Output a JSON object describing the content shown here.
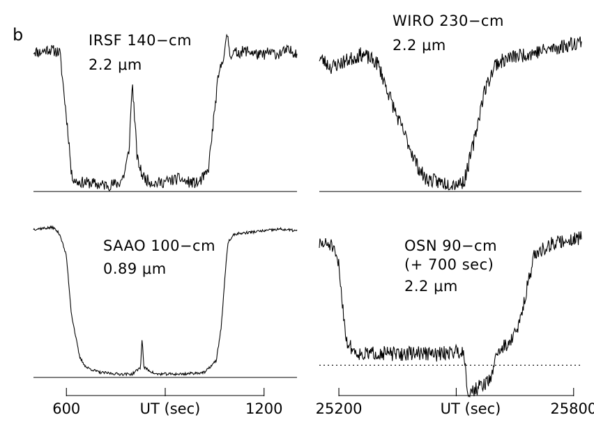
{
  "figure": {
    "panel_letter": "b"
  },
  "chart_data": [
    {
      "type": "line",
      "id": "irsf",
      "label_lines": [
        "IRSF 140−cm",
        "2.2 μm"
      ],
      "x_range": [
        500,
        1300
      ],
      "y_range": [
        0,
        1
      ],
      "series": [
        {
          "x": [
            500,
            520,
            545,
            580,
            608,
            615,
            630,
            680,
            700,
            730,
            760,
            775,
            790,
            800,
            815,
            830,
            845,
            870,
            900,
            945,
            960,
            1000,
            1030,
            1045,
            1060,
            1075,
            1080,
            1090,
            1095,
            1150,
            1190,
            1215,
            1240,
            1270,
            1300
          ],
          "y": [
            0.86,
            0.85,
            0.87,
            0.85,
            0.3,
            0.1,
            0.06,
            0.05,
            0.04,
            0.04,
            0.05,
            0.1,
            0.25,
            0.67,
            0.2,
            0.1,
            0.07,
            0.05,
            0.06,
            0.08,
            0.06,
            0.05,
            0.12,
            0.4,
            0.68,
            0.82,
            0.85,
            0.97,
            0.84,
            0.86,
            0.83,
            0.85,
            0.84,
            0.86,
            0.85
          ]
        }
      ],
      "baseline": 0
    },
    {
      "type": "line",
      "id": "wiro",
      "label_lines": [
        "WIRO 230−cm",
        "2.2 μm"
      ],
      "x_range": [
        25150,
        25820
      ],
      "y_range": [
        0,
        1
      ],
      "series": [
        {
          "x": [
            25150,
            25180,
            25220,
            25260,
            25300,
            25330,
            25350,
            25380,
            25400,
            25420,
            25450,
            25480,
            25500,
            25520,
            25545,
            25570,
            25600,
            25640,
            25700,
            25760,
            25820
          ],
          "y": [
            0.82,
            0.76,
            0.8,
            0.84,
            0.78,
            0.58,
            0.45,
            0.28,
            0.16,
            0.08,
            0.06,
            0.05,
            0.05,
            0.06,
            0.3,
            0.6,
            0.78,
            0.82,
            0.85,
            0.88,
            0.92
          ]
        }
      ],
      "baseline": 0
    },
    {
      "type": "line",
      "id": "saao",
      "label_lines": [
        "SAAO 100−cm",
        "0.89 μm"
      ],
      "x_range": [
        500,
        1300
      ],
      "y_range": [
        0,
        1
      ],
      "series": [
        {
          "x": [
            500,
            560,
            580,
            600,
            615,
            640,
            660,
            700,
            760,
            800,
            825,
            830,
            835,
            870,
            950,
            1020,
            1055,
            1070,
            1080,
            1090,
            1110,
            1150,
            1200,
            1250,
            1300
          ],
          "y": [
            0.88,
            0.89,
            0.85,
            0.72,
            0.38,
            0.12,
            0.06,
            0.03,
            0.02,
            0.02,
            0.06,
            0.24,
            0.06,
            0.02,
            0.02,
            0.03,
            0.1,
            0.3,
            0.56,
            0.8,
            0.85,
            0.86,
            0.87,
            0.88,
            0.87
          ]
        }
      ],
      "baseline": 0
    },
    {
      "type": "line",
      "id": "osn",
      "label_lines": [
        "OSN 90−cm",
        "(+ 700 sec)",
        "2.2 μm"
      ],
      "x_range": [
        25150,
        25820
      ],
      "y_range": [
        0,
        1
      ],
      "series": [
        {
          "x": [
            25150,
            25180,
            25200,
            25210,
            25220,
            25240,
            25260,
            25300,
            25350,
            25400,
            25450,
            25500,
            25520,
            25530,
            25560,
            25590,
            25600,
            25640,
            25660,
            25680,
            25700,
            25740,
            25780,
            25820
          ],
          "y": [
            0.8,
            0.8,
            0.68,
            0.45,
            0.25,
            0.2,
            0.18,
            0.19,
            0.18,
            0.19,
            0.18,
            0.2,
            0.19,
            -0.04,
            0.0,
            0.04,
            0.18,
            0.26,
            0.34,
            0.55,
            0.74,
            0.8,
            0.82,
            0.84
          ]
        }
      ],
      "baseline": 0.12
    }
  ],
  "axes": [
    {
      "id": "left-axis",
      "xlabel": "UT (sec)",
      "ticks": [
        {
          "value": 600,
          "label": "600"
        },
        {
          "value": 900,
          "label": ""
        },
        {
          "value": 1200,
          "label": "1200"
        }
      ]
    },
    {
      "id": "right-axis",
      "xlabel": "UT (sec)",
      "ticks": [
        {
          "value": 25200,
          "label": "25200"
        },
        {
          "value": 25500,
          "label": ""
        },
        {
          "value": 25800,
          "label": "25800"
        }
      ]
    }
  ]
}
